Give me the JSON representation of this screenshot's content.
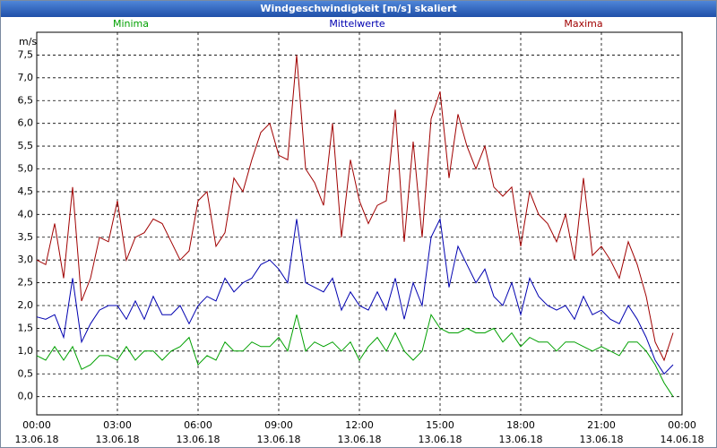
{
  "window_title": "Windgeschwindigkeit [m/s] skaliert",
  "chart_data": {
    "type": "line",
    "y_label": "m/s",
    "x": [
      0,
      20,
      40,
      60,
      80,
      100,
      120,
      140,
      160,
      180,
      200,
      220,
      240,
      260,
      280,
      300,
      320,
      340,
      360,
      380,
      400,
      420,
      440,
      460,
      480,
      500,
      520,
      540,
      560,
      580,
      600,
      620,
      640,
      660,
      680,
      700,
      720,
      740,
      760,
      780,
      800,
      820,
      840,
      860,
      880,
      900,
      920,
      940,
      960,
      980,
      1000,
      1020,
      1040,
      1060,
      1080,
      1100,
      1120,
      1140,
      1160,
      1180,
      1200,
      1220,
      1240,
      1260,
      1280,
      1300,
      1320,
      1340,
      1360,
      1380,
      1400,
      1420
    ],
    "xlim": [
      0,
      1440
    ],
    "xticks": [
      {
        "value": 0,
        "label": "00:00"
      },
      {
        "value": 180,
        "label": "03:00"
      },
      {
        "value": 360,
        "label": "06:00"
      },
      {
        "value": 540,
        "label": "09:00"
      },
      {
        "value": 720,
        "label": "12:00"
      },
      {
        "value": 900,
        "label": "15:00"
      },
      {
        "value": 1080,
        "label": "18:00"
      },
      {
        "value": 1260,
        "label": "21:00"
      },
      {
        "value": 1440,
        "label": "00:00"
      }
    ],
    "xtick_dates": [
      "13.06.18",
      "13.06.18",
      "13.06.18",
      "13.06.18",
      "13.06.18",
      "13.06.18",
      "13.06.18",
      "13.06.18",
      "14.06.18"
    ],
    "ylim": [
      -0.4,
      8.0
    ],
    "yticks": [
      {
        "value": 0,
        "label": "0,0"
      },
      {
        "value": 0.5,
        "label": "0,5"
      },
      {
        "value": 1,
        "label": "1,0"
      },
      {
        "value": 1.5,
        "label": "1,5"
      },
      {
        "value": 2,
        "label": "2,0"
      },
      {
        "value": 2.5,
        "label": "2,5"
      },
      {
        "value": 3,
        "label": "3,0"
      },
      {
        "value": 3.5,
        "label": "3,5"
      },
      {
        "value": 4,
        "label": "4,0"
      },
      {
        "value": 4.5,
        "label": "4,5"
      },
      {
        "value": 5,
        "label": "5,0"
      },
      {
        "value": 5.5,
        "label": "5,5"
      },
      {
        "value": 6,
        "label": "6,0"
      },
      {
        "value": 6.5,
        "label": "6,5"
      },
      {
        "value": 7,
        "label": "7,0"
      },
      {
        "value": 7.5,
        "label": "7,5"
      }
    ],
    "grid": true,
    "series": [
      {
        "name": "Minima",
        "color": "#00a000",
        "values": [
          0.9,
          0.8,
          1.1,
          0.8,
          1.1,
          0.6,
          0.7,
          0.9,
          0.9,
          0.8,
          1.1,
          0.8,
          1.0,
          1.0,
          0.8,
          1.0,
          1.1,
          1.3,
          0.7,
          0.9,
          0.8,
          1.2,
          1.0,
          1.0,
          1.2,
          1.1,
          1.1,
          1.3,
          1.0,
          1.8,
          1.0,
          1.2,
          1.1,
          1.2,
          1.0,
          1.2,
          0.8,
          1.1,
          1.3,
          1.0,
          1.4,
          1.0,
          0.8,
          1.0,
          1.8,
          1.5,
          1.4,
          1.4,
          1.5,
          1.4,
          1.4,
          1.5,
          1.2,
          1.4,
          1.1,
          1.3,
          1.2,
          1.2,
          1.0,
          1.2,
          1.2,
          1.1,
          1.0,
          1.1,
          1.0,
          0.9,
          1.2,
          1.2,
          1.0,
          0.7,
          0.3,
          0.0
        ]
      },
      {
        "name": "Mittelwerte",
        "color": "#0000b0",
        "values": [
          1.75,
          1.7,
          1.8,
          1.3,
          2.6,
          1.2,
          1.6,
          1.9,
          2.0,
          2.0,
          1.7,
          2.1,
          1.7,
          2.2,
          1.8,
          1.8,
          2.0,
          1.6,
          2.0,
          2.2,
          2.1,
          2.6,
          2.3,
          2.5,
          2.6,
          2.9,
          3.0,
          2.8,
          2.5,
          3.9,
          2.5,
          2.4,
          2.3,
          2.6,
          1.9,
          2.3,
          2.0,
          1.9,
          2.3,
          1.9,
          2.6,
          1.7,
          2.5,
          2.0,
          3.5,
          3.9,
          2.4,
          3.3,
          2.9,
          2.5,
          2.8,
          2.2,
          2.0,
          2.5,
          1.8,
          2.6,
          2.2,
          2.0,
          1.9,
          2.0,
          1.7,
          2.2,
          1.8,
          1.9,
          1.7,
          1.6,
          2.0,
          1.7,
          1.3,
          0.8,
          0.5,
          0.7
        ]
      },
      {
        "name": "Maxima",
        "color": "#a00000",
        "values": [
          3.0,
          2.9,
          3.8,
          2.6,
          4.6,
          2.1,
          2.6,
          3.5,
          3.4,
          4.3,
          3.0,
          3.5,
          3.6,
          3.9,
          3.8,
          3.4,
          3.0,
          3.2,
          4.3,
          4.5,
          3.3,
          3.6,
          4.8,
          4.5,
          5.2,
          5.8,
          6.0,
          5.3,
          5.2,
          7.5,
          5.0,
          4.7,
          4.2,
          6.0,
          3.5,
          5.2,
          4.3,
          3.8,
          4.2,
          4.3,
          6.3,
          3.4,
          5.6,
          3.5,
          6.1,
          6.7,
          4.8,
          6.2,
          5.5,
          5.0,
          5.5,
          4.6,
          4.4,
          4.6,
          3.3,
          4.5,
          4.0,
          3.8,
          3.4,
          4.0,
          3.0,
          4.8,
          3.1,
          3.3,
          3.0,
          2.6,
          3.4,
          2.9,
          2.2,
          1.2,
          0.8,
          1.4
        ]
      }
    ]
  }
}
